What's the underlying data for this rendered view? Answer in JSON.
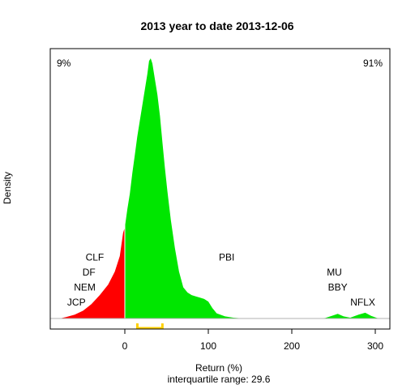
{
  "chart_data": {
    "type": "area",
    "title": "2013  year to date 2013-12-06",
    "xlabel": "Return (%)",
    "ylabel": "Density",
    "subtitle": "interquartile range: 29.6",
    "xlim": [
      -90,
      315
    ],
    "ylim": [
      0,
      1
    ],
    "x_ticks": [
      0,
      100,
      200,
      300
    ],
    "split_x": 0,
    "left_pct_label": "9%",
    "right_pct_label": "91%",
    "colors": {
      "negative": "#ff0000",
      "positive": "#00e600",
      "iqr": "#ffd000",
      "left_pct": "#d40000",
      "right_pct": "#00a000"
    },
    "iqr": [
      15,
      45
    ],
    "density": [
      [
        -78,
        0
      ],
      [
        -70,
        0.006
      ],
      [
        -60,
        0.015
      ],
      [
        -50,
        0.03
      ],
      [
        -40,
        0.055
      ],
      [
        -30,
        0.09
      ],
      [
        -20,
        0.13
      ],
      [
        -12,
        0.18
      ],
      [
        -6,
        0.24
      ],
      [
        -2,
        0.33
      ],
      [
        0,
        0.35
      ],
      [
        3,
        0.42
      ],
      [
        6,
        0.48
      ],
      [
        9,
        0.56
      ],
      [
        12,
        0.63
      ],
      [
        15,
        0.7
      ],
      [
        18,
        0.76
      ],
      [
        21,
        0.82
      ],
      [
        24,
        0.88
      ],
      [
        27,
        0.94
      ],
      [
        29,
        0.99
      ],
      [
        31,
        1.0
      ],
      [
        33,
        0.98
      ],
      [
        36,
        0.92
      ],
      [
        39,
        0.86
      ],
      [
        42,
        0.78
      ],
      [
        45,
        0.68
      ],
      [
        48,
        0.58
      ],
      [
        51,
        0.49
      ],
      [
        55,
        0.38
      ],
      [
        60,
        0.27
      ],
      [
        65,
        0.18
      ],
      [
        70,
        0.12
      ],
      [
        75,
        0.1
      ],
      [
        80,
        0.09
      ],
      [
        85,
        0.085
      ],
      [
        90,
        0.08
      ],
      [
        95,
        0.075
      ],
      [
        100,
        0.065
      ],
      [
        105,
        0.04
      ],
      [
        110,
        0.02
      ],
      [
        120,
        0.008
      ],
      [
        130,
        0.003
      ],
      [
        140,
        0.001
      ],
      [
        150,
        0
      ],
      [
        230,
        0
      ],
      [
        240,
        0.002
      ],
      [
        248,
        0.01
      ],
      [
        255,
        0.018
      ],
      [
        262,
        0.008
      ],
      [
        270,
        0.003
      ],
      [
        280,
        0.015
      ],
      [
        288,
        0.022
      ],
      [
        295,
        0.01
      ],
      [
        302,
        0.002
      ],
      [
        310,
        0
      ]
    ],
    "annotations": [
      {
        "text": "JCP",
        "x": -58,
        "y": 0.05
      },
      {
        "text": "NEM",
        "x": -48,
        "y": 0.108
      },
      {
        "text": "DF",
        "x": -43,
        "y": 0.165
      },
      {
        "text": "CLF",
        "x": -36,
        "y": 0.222
      },
      {
        "text": "PBI",
        "x": 122,
        "y": 0.222
      },
      {
        "text": "MU",
        "x": 251,
        "y": 0.165
      },
      {
        "text": "BBY",
        "x": 255,
        "y": 0.108
      },
      {
        "text": "NFLX",
        "x": 285,
        "y": 0.05
      }
    ]
  }
}
